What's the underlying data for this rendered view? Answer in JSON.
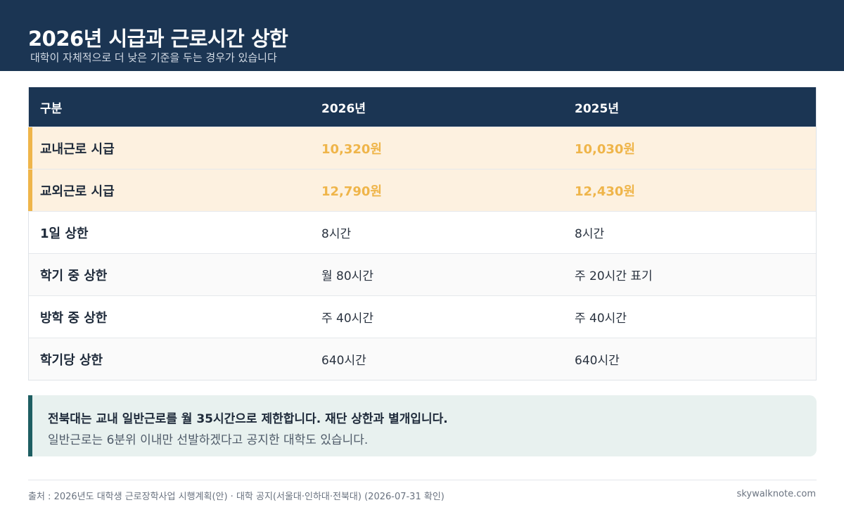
{
  "header": {
    "title": "2026년 시급과 근로시간 상한",
    "subtitle": "대학이 자체적으로 더 낮은 기준을 두는 경우가 있습니다"
  },
  "table": {
    "columns": [
      "구분",
      "2026년",
      "2025년"
    ],
    "rows": [
      {
        "label": "교내근로 시급",
        "y2026": "10,320원",
        "y2025": "10,030원"
      },
      {
        "label": "교외근로 시급",
        "y2026": "12,790원",
        "y2025": "12,430원"
      },
      {
        "label": "1일 상한",
        "y2026": "8시간",
        "y2025": "8시간"
      },
      {
        "label": "학기 중 상한",
        "y2026": "월 80시간",
        "y2025": "주 20시간 표기"
      },
      {
        "label": "방학 중 상한",
        "y2026": "주 40시간",
        "y2025": "주 40시간"
      },
      {
        "label": "학기당 상한",
        "y2026": "640시간",
        "y2025": "640시간"
      }
    ]
  },
  "note": {
    "line1": "전북대는 교내 일반근로를 월 35시간으로 제한합니다. 재단 상한과 별개입니다.",
    "line2": "일반근로는 6분위 이내만 선발하겠다고 공지한 대학도 있습니다."
  },
  "footer": {
    "source": "출처 : 2026년도 대학생 근로장학사업 시행계획(안) · 대학 공지(서울대·인하대·전북대) (2026-07-31 확인)",
    "site": "skywalknote.com"
  },
  "colors": {
    "header_bg": "#1b3553",
    "highlight_bg": "#fdf1e0",
    "highlight_accent": "#efb54a",
    "note_bg": "#e8f1ef",
    "note_accent": "#1e5e62"
  }
}
